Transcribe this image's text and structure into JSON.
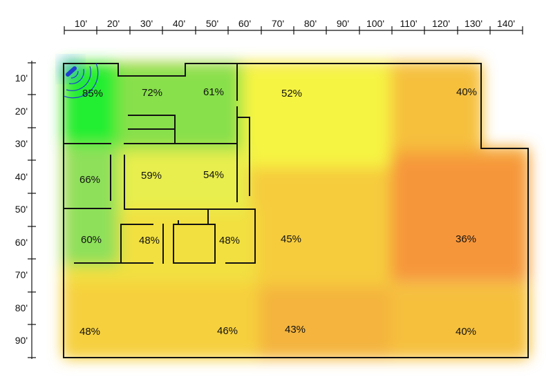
{
  "rulers": {
    "x_labels": [
      "10'",
      "20'",
      "30'",
      "40'",
      "50'",
      "60'",
      "70'",
      "80'",
      "90'",
      "100'",
      "110'",
      "120'",
      "130'",
      "140'"
    ],
    "y_labels": [
      "10'",
      "20'",
      "30'",
      "40'",
      "50'",
      "60'",
      "70'",
      "80'",
      "90'"
    ]
  },
  "zones": [
    {
      "id": "r1",
      "label": "85%",
      "value": 85
    },
    {
      "id": "r2",
      "label": "72%",
      "value": 72
    },
    {
      "id": "r3",
      "label": "61%",
      "value": 61
    },
    {
      "id": "r4",
      "label": "52%",
      "value": 52
    },
    {
      "id": "r5",
      "label": "40%",
      "value": 40
    },
    {
      "id": "r6",
      "label": "66%",
      "value": 66
    },
    {
      "id": "r7",
      "label": "59%",
      "value": 59
    },
    {
      "id": "r8",
      "label": "54%",
      "value": 54
    },
    {
      "id": "r9",
      "label": "60%",
      "value": 60
    },
    {
      "id": "r10",
      "label": "48%",
      "value": 48
    },
    {
      "id": "r11",
      "label": "48%",
      "value": 48
    },
    {
      "id": "r12",
      "label": "45%",
      "value": 45
    },
    {
      "id": "r13",
      "label": "36%",
      "value": 36
    },
    {
      "id": "r14",
      "label": "48%",
      "value": 48
    },
    {
      "id": "r15",
      "label": "46%",
      "value": 46
    },
    {
      "id": "r16",
      "label": "43%",
      "value": 43
    },
    {
      "id": "r17",
      "label": "40%",
      "value": 40
    }
  ],
  "colors": {
    "strong": "#22ee33",
    "good": "#8ee050",
    "mid": "#eeee44",
    "fair": "#f6cc3c",
    "weak": "#f4a83c",
    "poor": "#f6963a",
    "router": "#1f3fd0",
    "wall": "#111111"
  },
  "icons": {
    "router": "wifi-router-icon"
  }
}
